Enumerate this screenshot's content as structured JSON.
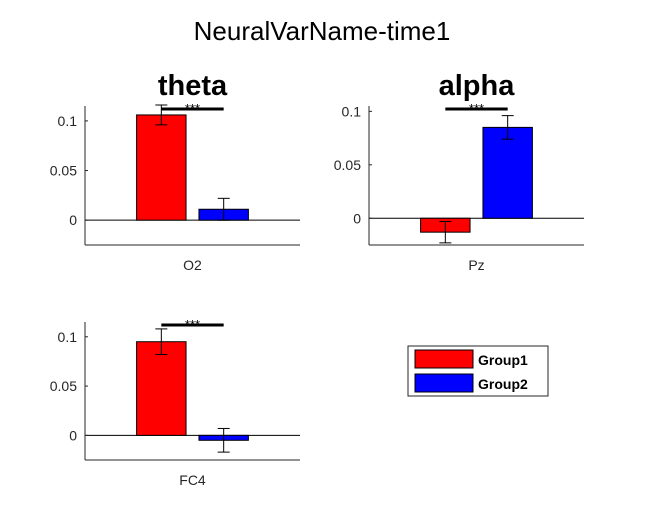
{
  "figure": {
    "title": "NeuralVarName-time1"
  },
  "colors": {
    "group1": "#ff0000",
    "group2": "#0000ff"
  },
  "chart_data": [
    {
      "type": "bar",
      "title": "theta",
      "xlabel": "O2",
      "ylim": [
        -0.025,
        0.115
      ],
      "yticks": [
        0,
        0.05,
        0.1
      ],
      "ytick_labels": [
        "0",
        "0.05",
        "0.1"
      ],
      "series": [
        {
          "name": "Group1",
          "value": 0.106,
          "err": 0.01
        },
        {
          "name": "Group2",
          "value": 0.011,
          "err": 0.011
        }
      ],
      "significance": "***"
    },
    {
      "type": "bar",
      "title": "alpha",
      "xlabel": "Pz",
      "ylim": [
        -0.025,
        0.105
      ],
      "yticks": [
        0,
        0.05,
        0.1
      ],
      "ytick_labels": [
        "0",
        "0.05",
        "0.1"
      ],
      "series": [
        {
          "name": "Group1",
          "value": -0.013,
          "err": 0.01
        },
        {
          "name": "Group2",
          "value": 0.085,
          "err": 0.011
        }
      ],
      "significance": "***"
    },
    {
      "type": "bar",
      "title": "",
      "xlabel": "FC4",
      "ylim": [
        -0.025,
        0.115
      ],
      "yticks": [
        0,
        0.05,
        0.1
      ],
      "ytick_labels": [
        "0",
        "0.05",
        "0.1"
      ],
      "series": [
        {
          "name": "Group1",
          "value": 0.095,
          "err": 0.013
        },
        {
          "name": "Group2",
          "value": -0.005,
          "err": 0.012
        }
      ],
      "significance": "***"
    }
  ],
  "legend": {
    "placement": "bottom-right",
    "items": [
      "Group1",
      "Group2"
    ]
  }
}
